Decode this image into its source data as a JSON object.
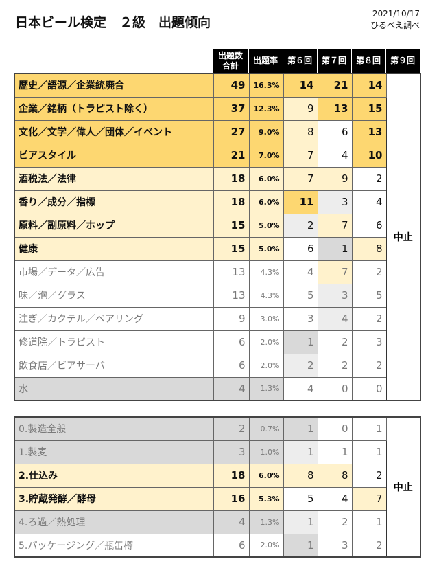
{
  "header": {
    "title": "日本ビール検定　２級　出題傾向",
    "date": "2021/10/17",
    "source": "ひるべえ調べ"
  },
  "columns": [
    [
      "出題数",
      "合計"
    ],
    "出題率",
    "第６回",
    "第７回",
    "第８回",
    "第９回"
  ],
  "colors": {
    "gold": "#fdd771",
    "cream": "#fff2cc",
    "gray": "#d9d9d9",
    "light": "#ededed",
    "white": "#ffffff",
    "dim": "#7a7a7a",
    "ink": "#111111"
  },
  "tables": [
    {
      "suspended": "中止",
      "rows": [
        {
          "label": "歴史／語源／企業統廃合",
          "total": 49,
          "rate": "16.3%",
          "rounds": [
            14,
            21,
            14
          ],
          "bg": "gold",
          "text": "ink",
          "bold": true,
          "cells": [
            "gold",
            "gold",
            "gold"
          ]
        },
        {
          "label": "企業／銘柄（トラピスト除く）",
          "total": 37,
          "rate": "12.3%",
          "rounds": [
            9,
            13,
            15
          ],
          "bg": "gold",
          "text": "ink",
          "bold": true,
          "cells": [
            "cream",
            "gold",
            "gold"
          ]
        },
        {
          "label": "文化／文学／偉人／団体／イベント",
          "total": 27,
          "rate": "9.0%",
          "rounds": [
            8,
            6,
            13
          ],
          "bg": "gold",
          "text": "ink",
          "bold": true,
          "cells": [
            "cream",
            "white",
            "gold"
          ]
        },
        {
          "label": "ビアスタイル",
          "total": 21,
          "rate": "7.0%",
          "rounds": [
            7,
            4,
            10
          ],
          "bg": "gold",
          "text": "ink",
          "bold": true,
          "cells": [
            "cream",
            "white",
            "gold"
          ]
        },
        {
          "label": "酒税法／法律",
          "total": 18,
          "rate": "6.0%",
          "rounds": [
            7,
            9,
            2
          ],
          "bg": "cream",
          "text": "ink",
          "bold": true,
          "cells": [
            "cream",
            "cream",
            "white"
          ]
        },
        {
          "label": "香り／成分／指標",
          "total": 18,
          "rate": "6.0%",
          "rounds": [
            11,
            3,
            4
          ],
          "bg": "cream",
          "text": "ink",
          "bold": true,
          "cells": [
            "gold",
            "light",
            "white"
          ]
        },
        {
          "label": "原料／副原料／ホップ",
          "total": 15,
          "rate": "5.0%",
          "rounds": [
            2,
            7,
            6
          ],
          "bg": "cream",
          "text": "ink",
          "bold": true,
          "cells": [
            "light",
            "cream",
            "white"
          ]
        },
        {
          "label": "健康",
          "total": 15,
          "rate": "5.0%",
          "rounds": [
            6,
            1,
            8
          ],
          "bg": "cream",
          "text": "ink",
          "bold": true,
          "cells": [
            "white",
            "gray",
            "cream"
          ]
        },
        {
          "label": "市場／データ／広告",
          "total": 13,
          "rate": "4.3%",
          "rounds": [
            4,
            7,
            2
          ],
          "bg": "white",
          "text": "dim",
          "bold": false,
          "cells": [
            "white",
            "cream",
            "white"
          ]
        },
        {
          "label": "味／泡／グラス",
          "total": 13,
          "rate": "4.3%",
          "rounds": [
            5,
            3,
            5
          ],
          "bg": "white",
          "text": "dim",
          "bold": false,
          "cells": [
            "white",
            "light",
            "white"
          ]
        },
        {
          "label": "注ぎ／カクテル／ペアリング",
          "total": 9,
          "rate": "3.0%",
          "rounds": [
            3,
            4,
            2
          ],
          "bg": "white",
          "text": "dim",
          "bold": false,
          "cells": [
            "white",
            "light",
            "white"
          ]
        },
        {
          "label": "修道院／トラピスト",
          "total": 6,
          "rate": "2.0%",
          "rounds": [
            1,
            2,
            3
          ],
          "bg": "white",
          "text": "dim",
          "bold": false,
          "cells": [
            "gray",
            "white",
            "white"
          ]
        },
        {
          "label": "飲食店／ビアサーバ",
          "total": 6,
          "rate": "2.0%",
          "rounds": [
            2,
            2,
            2
          ],
          "bg": "white",
          "text": "dim",
          "bold": false,
          "cells": [
            "light",
            "white",
            "white"
          ]
        },
        {
          "label": "水",
          "total": 4,
          "rate": "1.3%",
          "rounds": [
            4,
            0,
            0
          ],
          "bg": "gray",
          "text": "dim",
          "bold": false,
          "cells": [
            "white",
            "white",
            "white"
          ]
        }
      ]
    },
    {
      "suspended": "中止",
      "rows": [
        {
          "label": "0.製造全般",
          "total": 2,
          "rate": "0.7%",
          "rounds": [
            1,
            0,
            1
          ],
          "bg": "gray",
          "text": "dim",
          "bold": false,
          "cells": [
            "gray",
            "white",
            "white"
          ]
        },
        {
          "label": "1.製麦",
          "total": 3,
          "rate": "1.0%",
          "rounds": [
            1,
            1,
            1
          ],
          "bg": "gray",
          "text": "dim",
          "bold": false,
          "cells": [
            "light",
            "white",
            "white"
          ]
        },
        {
          "label": "2.仕込み",
          "total": 18,
          "rate": "6.0%",
          "rounds": [
            8,
            8,
            2
          ],
          "bg": "cream",
          "text": "ink",
          "bold": true,
          "cells": [
            "cream",
            "cream",
            "white"
          ]
        },
        {
          "label": "3.貯蔵発酵／酵母",
          "total": 16,
          "rate": "5.3%",
          "rounds": [
            5,
            4,
            7
          ],
          "bg": "cream",
          "text": "ink",
          "bold": true,
          "cells": [
            "white",
            "white",
            "cream"
          ]
        },
        {
          "label": "4.ろ過／熱処理",
          "total": 4,
          "rate": "1.3%",
          "rounds": [
            1,
            2,
            1
          ],
          "bg": "gray",
          "text": "dim",
          "bold": false,
          "cells": [
            "light",
            "white",
            "white"
          ]
        },
        {
          "label": "5.パッケージング／瓶缶樽",
          "total": 6,
          "rate": "2.0%",
          "rounds": [
            1,
            3,
            2
          ],
          "bg": "white",
          "text": "dim",
          "bold": false,
          "cells": [
            "gray",
            "white",
            "white"
          ]
        }
      ]
    }
  ]
}
